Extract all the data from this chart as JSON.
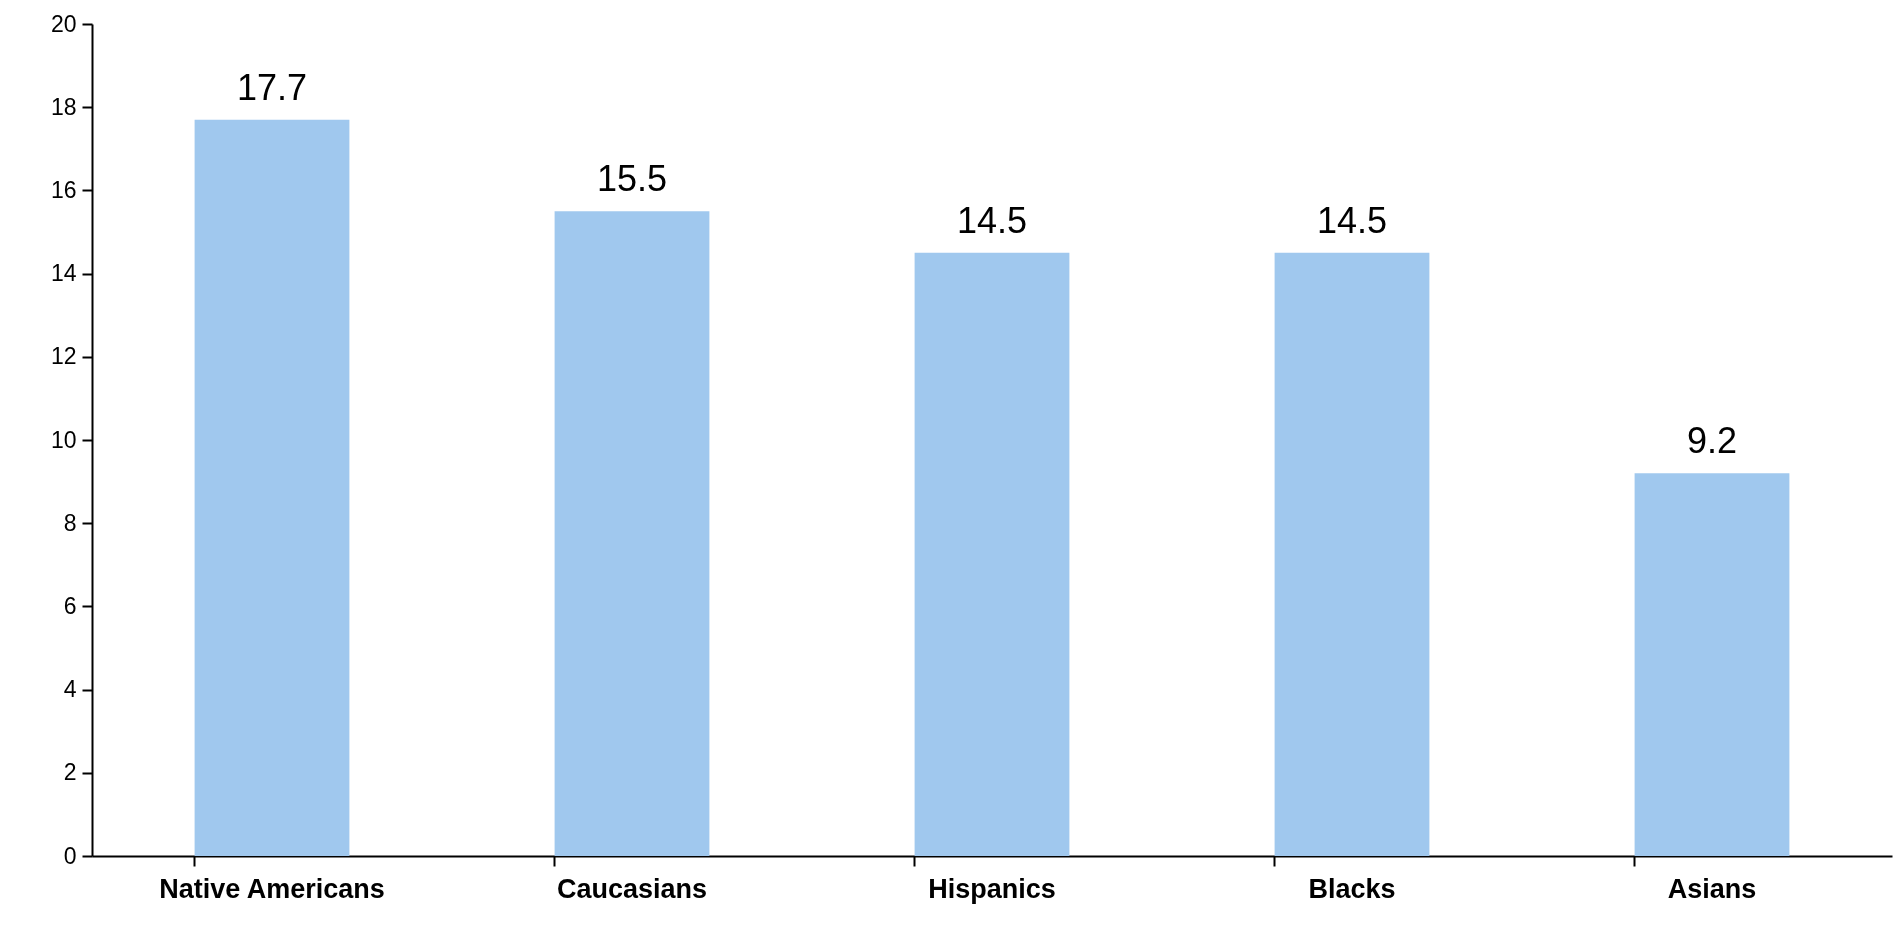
{
  "chart_data": {
    "type": "bar",
    "categories": [
      "Native Americans",
      "Caucasians",
      "Hispanics",
      "Blacks",
      "Asians"
    ],
    "values": [
      17.7,
      15.5,
      14.5,
      14.5,
      9.2
    ],
    "color": "#a0c8ee",
    "ylim": [
      0,
      20
    ],
    "yticks": [
      0,
      2,
      4,
      6,
      8,
      10,
      12,
      14,
      16,
      18,
      20
    ],
    "grid": false,
    "data_labels": true
  }
}
